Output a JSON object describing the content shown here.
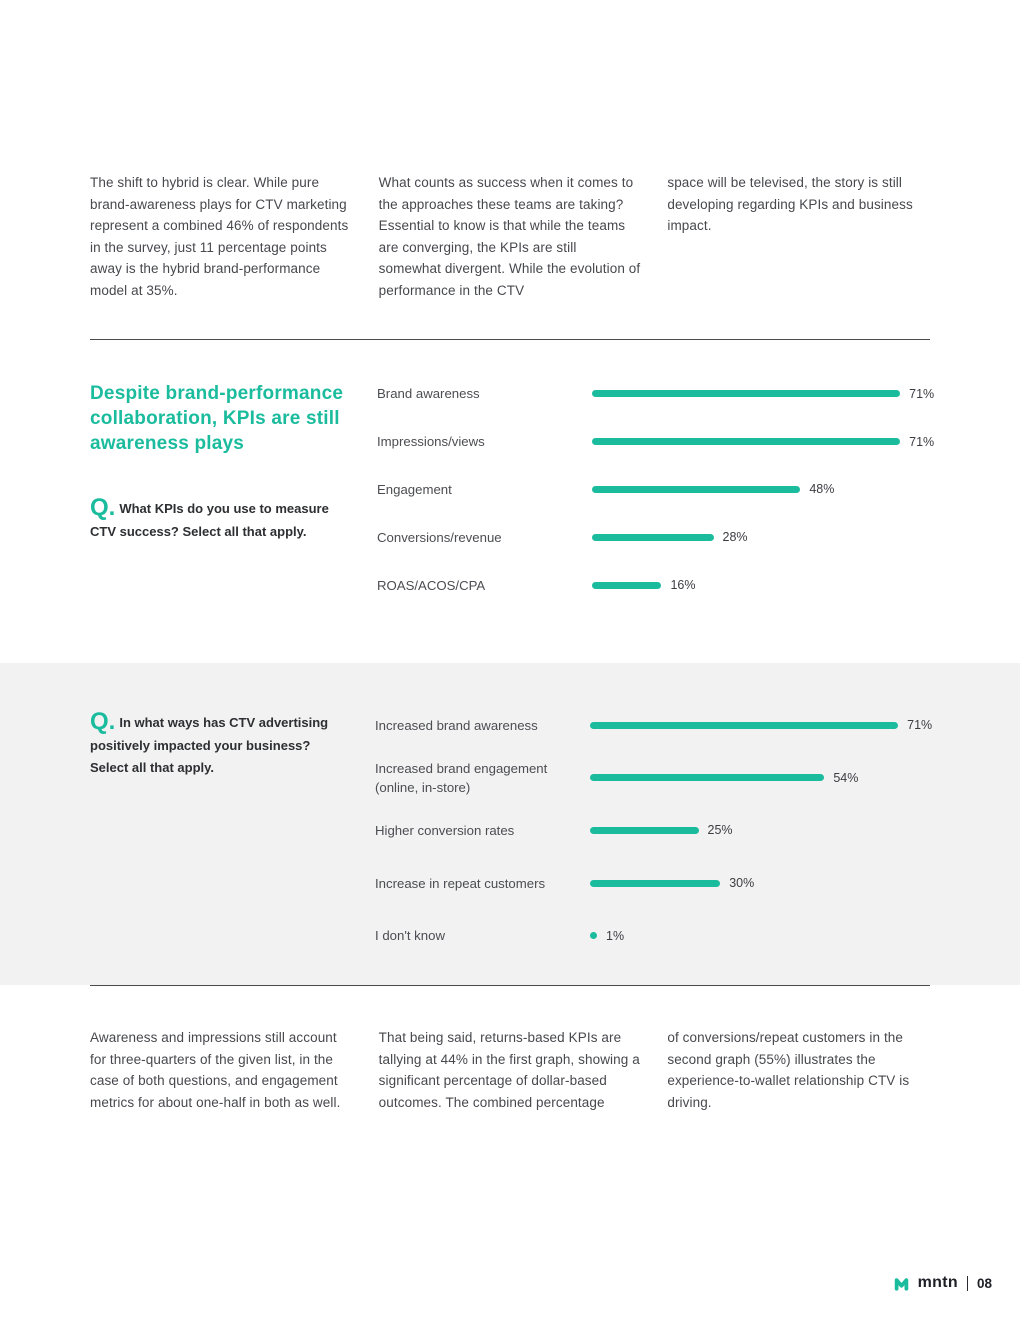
{
  "colors": {
    "accent": "#1bbc9e",
    "section_background": "#f2f2f2",
    "body_text": "#47484d"
  },
  "top_columns": [
    "The shift to hybrid is clear. While pure brand-awareness plays for CTV marketing represent a combined 46% of respondents in the survey, just 11 percentage points away is the hybrid brand-performance model at 35%.",
    "What counts as success when it comes to the approaches these teams are taking? Essential to know is that while the teams are converging, the KPIs are still somewhat divergent. While the evolution of performance in the CTV",
    "space will be televised, the story is still developing regarding KPIs and business impact."
  ],
  "section1": {
    "heading": "Despite brand-performance collaboration, KPIs are still awareness plays",
    "q_label": "Q.",
    "question": "What KPIs do you use to measure CTV success? Select all that apply."
  },
  "section2": {
    "q_label": "Q.",
    "question": "In what ways has CTV advertising positively impacted your business? Select all that apply."
  },
  "chart_data": [
    {
      "type": "bar",
      "orientation": "horizontal",
      "question": "What KPIs do you use to measure CTV success? Select all that apply.",
      "categories": [
        "Brand awareness",
        "Impressions/views",
        "Engagement",
        "Conversions/revenue",
        "ROAS/ACOS/CPA"
      ],
      "values": [
        71,
        71,
        48,
        28,
        16
      ],
      "value_suffix": "%",
      "xlim": [
        0,
        100
      ],
      "bar_color": "#1bbc9e"
    },
    {
      "type": "bar",
      "orientation": "horizontal",
      "question": "In what ways has CTV advertising positively impacted your business? Select all that apply.",
      "categories": [
        "Increased brand awareness",
        "Increased brand engagement (online, in-store)",
        "Higher conversion rates",
        "Increase in repeat customers",
        "I don't know"
      ],
      "values": [
        71,
        54,
        25,
        30,
        1
      ],
      "value_suffix": "%",
      "xlim": [
        0,
        100
      ],
      "bar_color": "#1bbc9e"
    }
  ],
  "bottom_columns": [
    "Awareness and impressions still account for three-quarters of the given list, in the case of both questions, and engagement metrics for about one-half in both as well.",
    "That being said, returns-based KPIs are tallying at 44% in the first graph, showing a significant percentage of dollar-based outcomes. The combined percentage",
    "of conversions/repeat customers in the second graph (55%) illustrates the experience-to-wallet relationship CTV is driving."
  ],
  "footer": {
    "brand": "mntn",
    "page_number": "08"
  }
}
